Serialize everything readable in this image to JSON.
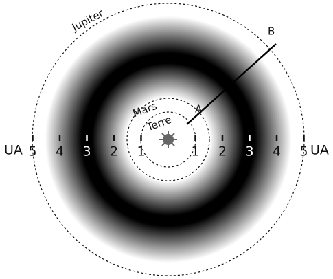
{
  "labels": {
    "jupiter": "Jupiter",
    "mars": "Mars",
    "terre": "Terre",
    "point_a": "A",
    "point_b": "B"
  },
  "scale": {
    "unit": "UA",
    "ticks": [
      1,
      2,
      3,
      4,
      5
    ]
  }
}
